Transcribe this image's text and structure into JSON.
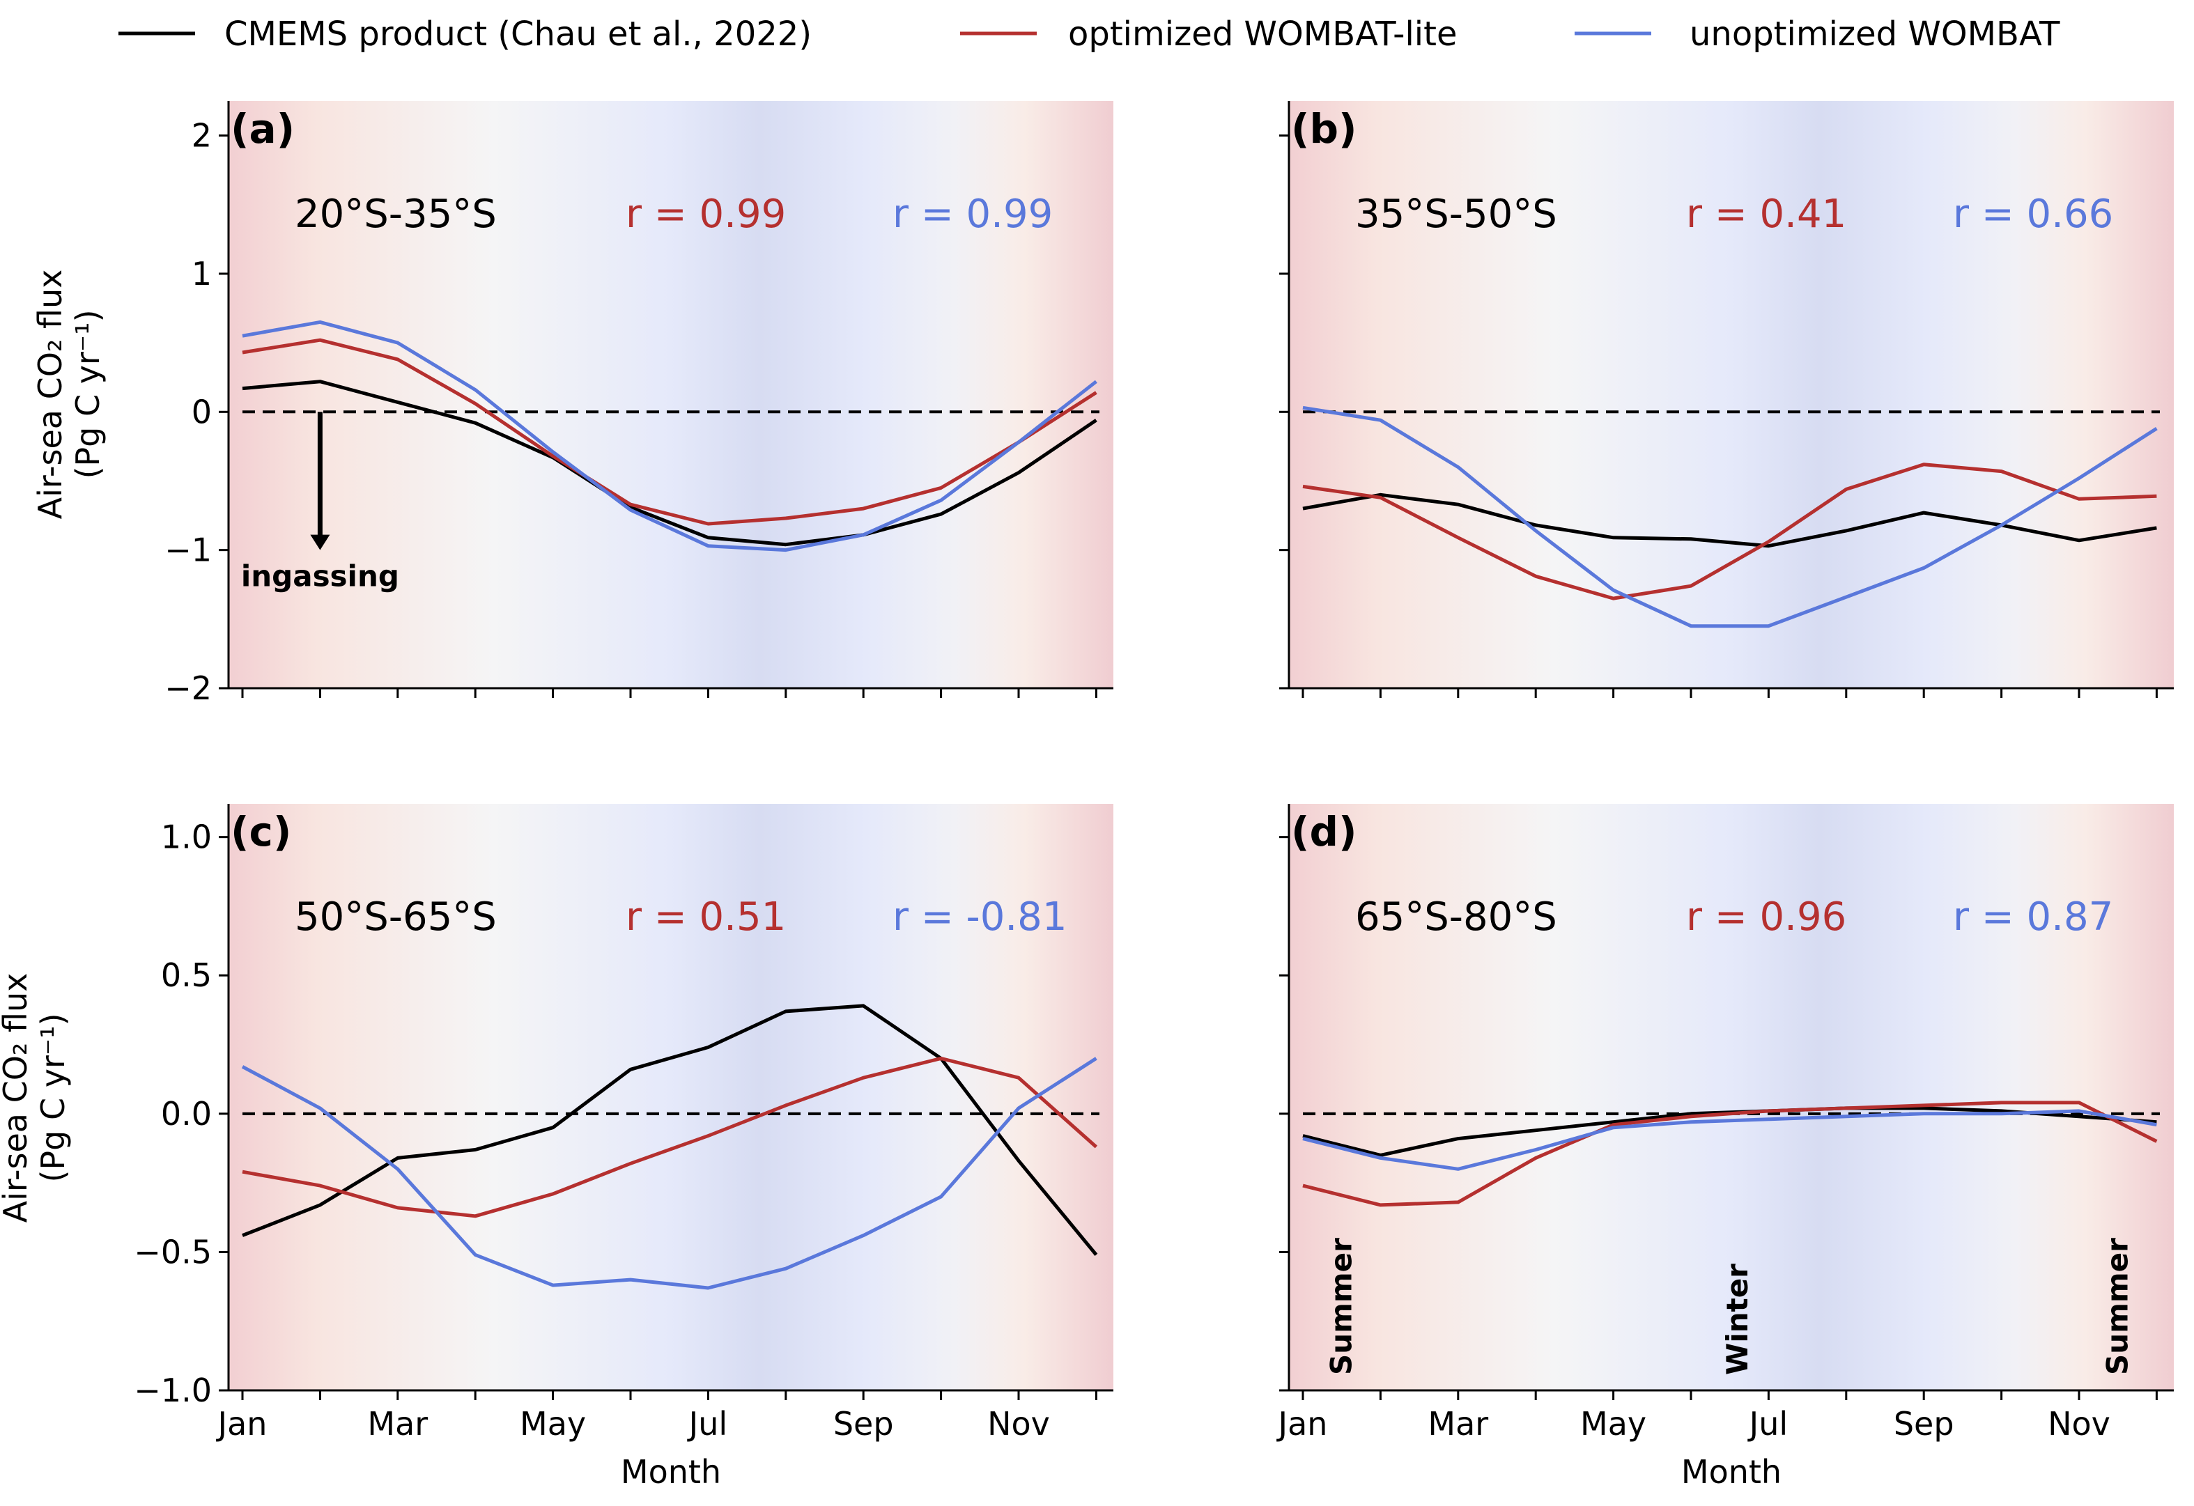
{
  "colors": {
    "cmems": "#000000",
    "optimized": "#b5302f",
    "unoptimized": "#5a78db",
    "summer_shade": "#f2cfd2",
    "transition_shade": "#f8f6f4",
    "winter_shade": "#d7dcf2"
  },
  "legend": {
    "items": [
      {
        "key": "cmems",
        "label": "CMEMS product (Chau et al., 2022)",
        "color": "#000000"
      },
      {
        "key": "optimized",
        "label": "optimized WOMBAT-lite",
        "color": "#b5302f"
      },
      {
        "key": "unoptimized",
        "label": "unoptimized WOMBAT",
        "color": "#5a78db"
      }
    ]
  },
  "chart_data": [
    {
      "type": "line",
      "panel_label": "(a)",
      "region": "20°S-35°S",
      "corr_optimized": "r = 0.99",
      "corr_unoptimized": "r = 0.99",
      "xlabel": "",
      "ylabel": "Air-sea CO₂ flux",
      "ylabel_units": "(Pg C yr⁻¹)",
      "ylim": [
        -2,
        2.25
      ],
      "yticks": [
        2,
        1,
        0,
        -1,
        -2
      ],
      "ytick_labels": [
        "2",
        "1",
        "0",
        "−1",
        "−2"
      ],
      "x": [
        1,
        2,
        3,
        4,
        5,
        6,
        7,
        8,
        9,
        10,
        11,
        12
      ],
      "xtick_labels": [],
      "zero_line": true,
      "series": [
        {
          "key": "cmems",
          "values": [
            0.17,
            0.22,
            0.07,
            -0.08,
            -0.33,
            -0.69,
            -0.91,
            -0.96,
            -0.89,
            -0.74,
            -0.44,
            -0.06
          ]
        },
        {
          "key": "optimized",
          "values": [
            0.43,
            0.52,
            0.38,
            0.06,
            -0.32,
            -0.67,
            -0.81,
            -0.77,
            -0.7,
            -0.55,
            -0.22,
            0.14
          ]
        },
        {
          "key": "unoptimized",
          "values": [
            0.55,
            0.65,
            0.5,
            0.16,
            -0.29,
            -0.71,
            -0.97,
            -1.0,
            -0.89,
            -0.64,
            -0.22,
            0.22
          ]
        }
      ],
      "annotation": {
        "text": "ingassing",
        "x": 2,
        "from_y": 0,
        "to_y": -1.0
      }
    },
    {
      "type": "line",
      "panel_label": "(b)",
      "region": "35°S-50°S",
      "corr_optimized": "r = 0.41",
      "corr_unoptimized": "r = 0.66",
      "xlabel": "",
      "ylabel": "",
      "ylim": [
        -2,
        2.25
      ],
      "yticks": [
        2,
        1,
        0,
        -1,
        -2
      ],
      "ytick_labels": [],
      "x": [
        1,
        2,
        3,
        4,
        5,
        6,
        7,
        8,
        9,
        10,
        11,
        12
      ],
      "xtick_labels": [],
      "zero_line": true,
      "series": [
        {
          "key": "cmems",
          "values": [
            -0.7,
            -0.6,
            -0.67,
            -0.82,
            -0.91,
            -0.92,
            -0.97,
            -0.86,
            -0.73,
            -0.82,
            -0.93,
            -0.84
          ]
        },
        {
          "key": "optimized",
          "values": [
            -0.54,
            -0.62,
            -0.91,
            -1.19,
            -1.35,
            -1.26,
            -0.94,
            -0.56,
            -0.38,
            -0.43,
            -0.63,
            -0.61
          ]
        },
        {
          "key": "unoptimized",
          "values": [
            0.03,
            -0.06,
            -0.4,
            -0.86,
            -1.29,
            -1.55,
            -1.55,
            -1.34,
            -1.13,
            -0.82,
            -0.48,
            -0.12
          ]
        }
      ]
    },
    {
      "type": "line",
      "panel_label": "(c)",
      "region": "50°S-65°S",
      "corr_optimized": "r = 0.51",
      "corr_unoptimized": "r = -0.81",
      "xlabel": "Month",
      "ylabel": "Air-sea CO₂ flux",
      "ylabel_units": "(Pg C yr⁻¹)",
      "ylim": [
        -1.0,
        1.12
      ],
      "yticks": [
        1.0,
        0.5,
        0.0,
        -0.5,
        -1.0
      ],
      "ytick_labels": [
        "1.0",
        "0.5",
        "0.0",
        "−0.5",
        "−1.0"
      ],
      "x": [
        1,
        2,
        3,
        4,
        5,
        6,
        7,
        8,
        9,
        10,
        11,
        12
      ],
      "xtick_labels": [
        "Jan",
        "",
        "Mar",
        "",
        "May",
        "",
        "Jul",
        "",
        "Sep",
        "",
        "Nov",
        ""
      ],
      "zero_line": true,
      "series": [
        {
          "key": "cmems",
          "values": [
            -0.44,
            -0.33,
            -0.16,
            -0.13,
            -0.05,
            0.16,
            0.24,
            0.37,
            0.39,
            0.2,
            -0.17,
            -0.51
          ]
        },
        {
          "key": "optimized",
          "values": [
            -0.21,
            -0.26,
            -0.34,
            -0.37,
            -0.29,
            -0.18,
            -0.08,
            0.03,
            0.13,
            0.2,
            0.13,
            -0.12
          ]
        },
        {
          "key": "unoptimized",
          "values": [
            0.17,
            0.02,
            -0.2,
            -0.51,
            -0.62,
            -0.6,
            -0.63,
            -0.56,
            -0.44,
            -0.3,
            0.02,
            0.2
          ]
        }
      ]
    },
    {
      "type": "line",
      "panel_label": "(d)",
      "region": "65°S-80°S",
      "corr_optimized": "r = 0.96",
      "corr_unoptimized": "r = 0.87",
      "xlabel": "Month",
      "ylabel": "",
      "ylim": [
        -1.0,
        1.12
      ],
      "yticks": [
        1.0,
        0.5,
        0.0,
        -0.5,
        -1.0
      ],
      "ytick_labels": [],
      "x": [
        1,
        2,
        3,
        4,
        5,
        6,
        7,
        8,
        9,
        10,
        11,
        12
      ],
      "xtick_labels": [
        "Jan",
        "",
        "Mar",
        "",
        "May",
        "",
        "Jul",
        "",
        "Sep",
        "",
        "Nov",
        ""
      ],
      "zero_line": true,
      "series": [
        {
          "key": "cmems",
          "values": [
            -0.08,
            -0.15,
            -0.09,
            -0.06,
            -0.03,
            0.0,
            0.01,
            0.02,
            0.02,
            0.01,
            -0.01,
            -0.03
          ]
        },
        {
          "key": "optimized",
          "values": [
            -0.26,
            -0.33,
            -0.32,
            -0.16,
            -0.04,
            -0.01,
            0.01,
            0.02,
            0.03,
            0.04,
            0.04,
            -0.1
          ]
        },
        {
          "key": "unoptimized",
          "values": [
            -0.09,
            -0.16,
            -0.2,
            -0.13,
            -0.05,
            -0.03,
            -0.02,
            -0.01,
            0.0,
            0.0,
            0.01,
            -0.04
          ]
        }
      ],
      "season_labels": [
        {
          "text": "Summer",
          "x": 1.5
        },
        {
          "text": "Winter",
          "x": 6.6
        },
        {
          "text": "Summer",
          "x": 11.5
        }
      ]
    }
  ]
}
